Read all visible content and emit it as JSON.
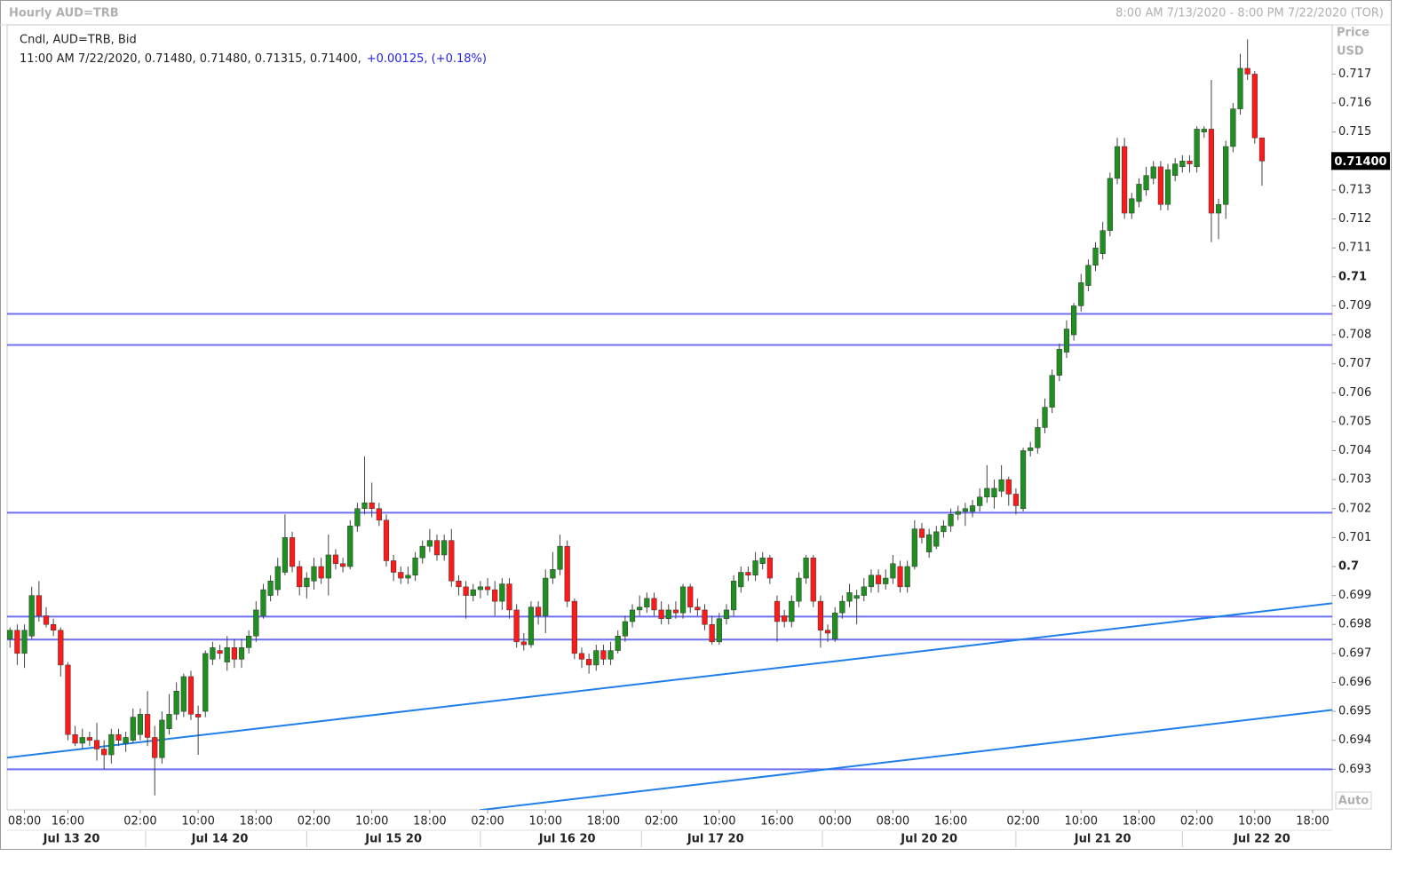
{
  "chart_data": {
    "type": "candlestick",
    "title": "Hourly AUD=TRB",
    "range_label": "8:00 AM 7/13/2020 - 8:00 PM 7/22/2020 (TOR)",
    "legend_line1": "Cndl, AUD=TRB, Bid",
    "legend_line2": "11:00 AM 7/22/2020, 0.71480, 0.71480, 0.71315, 0.71400,",
    "legend_change": "+0.00125, (+0.18%)",
    "axis_title": "Price",
    "axis_unit": "USD",
    "auto_label": "Auto",
    "last_price": {
      "value": 0.714,
      "label": "0.71400"
    },
    "up_color": "#1f8f1f",
    "down_color": "#ff1a1a",
    "xlim": [
      -0.4,
      182.7
    ],
    "ylim": [
      0.6916,
      0.7187
    ],
    "yticks": [
      0.693,
      0.694,
      0.695,
      0.696,
      0.697,
      0.698,
      0.699,
      0.7,
      0.701,
      0.702,
      0.703,
      0.704,
      0.705,
      0.706,
      0.707,
      0.708,
      0.709,
      0.71,
      0.711,
      0.712,
      0.713,
      0.714,
      0.715,
      0.716,
      0.717
    ],
    "xticks": [
      {
        "value": 2,
        "label": "08:00"
      },
      {
        "value": 8,
        "label": "16:00"
      },
      {
        "value": 18,
        "label": "02:00"
      },
      {
        "value": 26,
        "label": "10:00"
      },
      {
        "value": 34,
        "label": "18:00"
      },
      {
        "value": 42,
        "label": "02:00"
      },
      {
        "value": 50,
        "label": "10:00"
      },
      {
        "value": 58,
        "label": "18:00"
      },
      {
        "value": 66,
        "label": "02:00"
      },
      {
        "value": 74,
        "label": "10:00"
      },
      {
        "value": 82,
        "label": "18:00"
      },
      {
        "value": 90,
        "label": "02:00"
      },
      {
        "value": 98,
        "label": "10:00"
      },
      {
        "value": 106,
        "label": "16:00"
      },
      {
        "value": 114,
        "label": "00:00"
      },
      {
        "value": 122,
        "label": "08:00"
      },
      {
        "value": 130,
        "label": "16:00"
      },
      {
        "value": 140,
        "label": "02:00"
      },
      {
        "value": 148,
        "label": "10:00"
      },
      {
        "value": 156,
        "label": "18:00"
      },
      {
        "value": 164,
        "label": "02:00"
      },
      {
        "value": 172,
        "label": "10:00"
      },
      {
        "value": 180,
        "label": "18:00"
      }
    ],
    "date_ticks": [
      {
        "value": 8.5,
        "label": "Jul 13 20"
      },
      {
        "value": 29,
        "label": "Jul 14 20"
      },
      {
        "value": 53,
        "label": "Jul 15 20"
      },
      {
        "value": 77,
        "label": "Jul 16 20"
      },
      {
        "value": 97.5,
        "label": "Jul 17 20"
      },
      {
        "value": 127,
        "label": "Jul 20 20"
      },
      {
        "value": 151,
        "label": "Jul 21 20"
      },
      {
        "value": 173,
        "label": "Jul 22 20"
      }
    ],
    "hline_color": "#6f6ff2",
    "hlines": [
      0.70872,
      0.70765,
      0.70186,
      0.69827,
      0.69748,
      0.693
    ],
    "trend_color": "#1f7fe8",
    "trendlines": [
      [
        [
          -0.4,
          0.6934
        ],
        [
          182.7,
          0.69873
        ]
      ],
      [
        [
          64.9,
          0.69159
        ],
        [
          182.7,
          0.69505
        ]
      ]
    ],
    "ohlc": [
      [
        0.6975,
        0.6979,
        0.6972,
        0.6978
      ],
      [
        0.6978,
        0.698,
        0.6966,
        0.697
      ],
      [
        0.697,
        0.698,
        0.6965,
        0.6978
      ],
      [
        0.6976,
        0.6993,
        0.6975,
        0.699
      ],
      [
        0.699,
        0.6995,
        0.6981,
        0.6983
      ],
      [
        0.6983,
        0.6986,
        0.6979,
        0.698
      ],
      [
        0.698,
        0.6982,
        0.6976,
        0.6978
      ],
      [
        0.6978,
        0.6979,
        0.6962,
        0.6966
      ],
      [
        0.6966,
        0.6967,
        0.694,
        0.6942
      ],
      [
        0.6942,
        0.6945,
        0.6938,
        0.6939
      ],
      [
        0.6939,
        0.6944,
        0.6937,
        0.6941
      ],
      [
        0.6941,
        0.6943,
        0.6938,
        0.694
      ],
      [
        0.694,
        0.6946,
        0.6933,
        0.6937
      ],
      [
        0.6937,
        0.694,
        0.693,
        0.6935
      ],
      [
        0.6935,
        0.6944,
        0.6932,
        0.6942
      ],
      [
        0.6942,
        0.6944,
        0.6938,
        0.694
      ],
      [
        0.6939,
        0.6943,
        0.6936,
        0.6941
      ],
      [
        0.694,
        0.6951,
        0.6939,
        0.6948
      ],
      [
        0.6942,
        0.6951,
        0.694,
        0.6949
      ],
      [
        0.6949,
        0.6957,
        0.6938,
        0.6941
      ],
      [
        0.6941,
        0.6945,
        0.6921,
        0.6934
      ],
      [
        0.6934,
        0.695,
        0.6932,
        0.6947
      ],
      [
        0.6944,
        0.6956,
        0.6942,
        0.6949
      ],
      [
        0.6949,
        0.696,
        0.6947,
        0.6957
      ],
      [
        0.695,
        0.6963,
        0.6948,
        0.6962
      ],
      [
        0.6962,
        0.6964,
        0.6947,
        0.6949
      ],
      [
        0.6949,
        0.6952,
        0.6935,
        0.6948
      ],
      [
        0.695,
        0.6971,
        0.6948,
        0.697
      ],
      [
        0.6968,
        0.6974,
        0.6966,
        0.6972
      ],
      [
        0.6971,
        0.6973,
        0.6968,
        0.697
      ],
      [
        0.6967,
        0.6976,
        0.6964,
        0.6972
      ],
      [
        0.6972,
        0.6975,
        0.6965,
        0.6968
      ],
      [
        0.6968,
        0.6975,
        0.6965,
        0.6972
      ],
      [
        0.6972,
        0.6978,
        0.697,
        0.6976
      ],
      [
        0.6976,
        0.6988,
        0.6974,
        0.6985
      ],
      [
        0.6983,
        0.6994,
        0.6982,
        0.6992
      ],
      [
        0.699,
        0.6997,
        0.6988,
        0.6995
      ],
      [
        0.6992,
        0.7003,
        0.699,
        0.7
      ],
      [
        0.6998,
        0.7018,
        0.6997,
        0.701
      ],
      [
        0.701,
        0.7012,
        0.6998,
        0.7
      ],
      [
        0.7,
        0.7002,
        0.699,
        0.6993
      ],
      [
        0.6993,
        0.6998,
        0.6989,
        0.6996
      ],
      [
        0.6995,
        0.7003,
        0.6992,
        0.7
      ],
      [
        0.7,
        0.7003,
        0.6994,
        0.6996
      ],
      [
        0.6996,
        0.7011,
        0.699,
        0.7004
      ],
      [
        0.7004,
        0.7006,
        0.6999,
        0.7001
      ],
      [
        0.7001,
        0.7003,
        0.6998,
        0.7
      ],
      [
        0.7,
        0.7016,
        0.6999,
        0.7014
      ],
      [
        0.7014,
        0.7022,
        0.7012,
        0.702
      ],
      [
        0.702,
        0.7038,
        0.7018,
        0.7022
      ],
      [
        0.7022,
        0.7029,
        0.7017,
        0.702
      ],
      [
        0.702,
        0.7022,
        0.7014,
        0.7016
      ],
      [
        0.7016,
        0.7018,
        0.7,
        0.7002
      ],
      [
        0.7002,
        0.7004,
        0.6995,
        0.6998
      ],
      [
        0.6998,
        0.7,
        0.6994,
        0.6996
      ],
      [
        0.6996,
        0.7,
        0.6994,
        0.6997
      ],
      [
        0.6997,
        0.7005,
        0.6995,
        0.7003
      ],
      [
        0.7003,
        0.7009,
        0.7001,
        0.7007
      ],
      [
        0.7007,
        0.7013,
        0.7005,
        0.7009
      ],
      [
        0.7009,
        0.7011,
        0.7002,
        0.7004
      ],
      [
        0.7004,
        0.7011,
        0.7002,
        0.7009
      ],
      [
        0.7009,
        0.7013,
        0.6993,
        0.6995
      ],
      [
        0.6995,
        0.6997,
        0.699,
        0.6993
      ],
      [
        0.6993,
        0.6995,
        0.6982,
        0.699
      ],
      [
        0.699,
        0.6994,
        0.6988,
        0.6992
      ],
      [
        0.6992,
        0.6995,
        0.6989,
        0.6993
      ],
      [
        0.6993,
        0.6996,
        0.699,
        0.6992
      ],
      [
        0.6992,
        0.6995,
        0.6983,
        0.6988
      ],
      [
        0.6988,
        0.6996,
        0.6985,
        0.6994
      ],
      [
        0.6994,
        0.6996,
        0.6982,
        0.6985
      ],
      [
        0.6985,
        0.6987,
        0.6972,
        0.6974
      ],
      [
        0.6974,
        0.6977,
        0.6971,
        0.6973
      ],
      [
        0.6973,
        0.6988,
        0.6972,
        0.6986
      ],
      [
        0.6986,
        0.6988,
        0.698,
        0.6983
      ],
      [
        0.6983,
        0.6999,
        0.6977,
        0.6996
      ],
      [
        0.6996,
        0.7005,
        0.6994,
        0.6999
      ],
      [
        0.6999,
        0.7011,
        0.6997,
        0.7007
      ],
      [
        0.7007,
        0.7009,
        0.6986,
        0.6988
      ],
      [
        0.6988,
        0.6989,
        0.6968,
        0.697
      ],
      [
        0.697,
        0.6972,
        0.6965,
        0.6968
      ],
      [
        0.6968,
        0.697,
        0.6963,
        0.6966
      ],
      [
        0.6966,
        0.6973,
        0.6964,
        0.6971
      ],
      [
        0.6971,
        0.6973,
        0.6966,
        0.6968
      ],
      [
        0.6968,
        0.6974,
        0.6966,
        0.6971
      ],
      [
        0.6971,
        0.6978,
        0.697,
        0.6976
      ],
      [
        0.6976,
        0.6983,
        0.6974,
        0.6981
      ],
      [
        0.6981,
        0.6987,
        0.6979,
        0.6985
      ],
      [
        0.6985,
        0.699,
        0.6983,
        0.6986
      ],
      [
        0.6986,
        0.6991,
        0.6984,
        0.6989
      ],
      [
        0.6989,
        0.6991,
        0.6983,
        0.6985
      ],
      [
        0.6985,
        0.6988,
        0.698,
        0.6982
      ],
      [
        0.6982,
        0.6987,
        0.698,
        0.6985
      ],
      [
        0.6985,
        0.6988,
        0.6982,
        0.6984
      ],
      [
        0.6984,
        0.6994,
        0.6982,
        0.6993
      ],
      [
        0.6993,
        0.6994,
        0.6984,
        0.6986
      ],
      [
        0.6986,
        0.6989,
        0.6983,
        0.6985
      ],
      [
        0.6985,
        0.6987,
        0.6978,
        0.698
      ],
      [
        0.698,
        0.6983,
        0.6973,
        0.6974
      ],
      [
        0.6974,
        0.6984,
        0.6973,
        0.6982
      ],
      [
        0.6982,
        0.6987,
        0.698,
        0.6985
      ],
      [
        0.6985,
        0.6997,
        0.6983,
        0.6995
      ],
      [
        0.6993,
        0.7,
        0.6991,
        0.6998
      ],
      [
        0.6998,
        0.7,
        0.6995,
        0.6997
      ],
      [
        0.6997,
        0.7005,
        0.6995,
        0.7002
      ],
      [
        0.7001,
        0.7005,
        0.6999,
        0.7003
      ],
      [
        0.7003,
        0.7004,
        0.6994,
        0.6996
      ],
      [
        0.6988,
        0.699,
        0.6974,
        0.6981
      ],
      [
        0.6983,
        0.6985,
        0.6979,
        0.6981
      ],
      [
        0.6981,
        0.699,
        0.6979,
        0.6988
      ],
      [
        0.6988,
        0.6998,
        0.6986,
        0.6996
      ],
      [
        0.6996,
        0.7004,
        0.6994,
        0.7003
      ],
      [
        0.7003,
        0.7004,
        0.6986,
        0.6988
      ],
      [
        0.6988,
        0.699,
        0.6972,
        0.6978
      ],
      [
        0.6978,
        0.698,
        0.6974,
        0.6977
      ],
      [
        0.6975,
        0.6986,
        0.6974,
        0.6984
      ],
      [
        0.6984,
        0.699,
        0.6982,
        0.6988
      ],
      [
        0.6988,
        0.6994,
        0.6986,
        0.6991
      ],
      [
        0.6989,
        0.6992,
        0.698,
        0.699
      ],
      [
        0.699,
        0.6996,
        0.6988,
        0.6993
      ],
      [
        0.6993,
        0.6999,
        0.6991,
        0.6997
      ],
      [
        0.6997,
        0.6999,
        0.6991,
        0.6994
      ],
      [
        0.6994,
        0.6999,
        0.6992,
        0.6996
      ],
      [
        0.6996,
        0.7004,
        0.6994,
        0.7001
      ],
      [
        0.7,
        0.7002,
        0.6991,
        0.6993
      ],
      [
        0.6993,
        0.7002,
        0.6991,
        0.7
      ],
      [
        0.7,
        0.7016,
        0.6999,
        0.7013
      ],
      [
        0.7013,
        0.7015,
        0.7008,
        0.701
      ],
      [
        0.7005,
        0.7013,
        0.7003,
        0.7011
      ],
      [
        0.7007,
        0.7014,
        0.7006,
        0.7012
      ],
      [
        0.7012,
        0.7016,
        0.701,
        0.7014
      ],
      [
        0.7014,
        0.702,
        0.7012,
        0.7018
      ],
      [
        0.7018,
        0.7021,
        0.7016,
        0.7019
      ],
      [
        0.7019,
        0.7022,
        0.7014,
        0.702
      ],
      [
        0.7019,
        0.7023,
        0.7017,
        0.7021
      ],
      [
        0.7021,
        0.7027,
        0.7019,
        0.7024
      ],
      [
        0.7024,
        0.7035,
        0.7022,
        0.7027
      ],
      [
        0.7024,
        0.703,
        0.702,
        0.7027
      ],
      [
        0.7026,
        0.7035,
        0.7024,
        0.703
      ],
      [
        0.703,
        0.7031,
        0.7021,
        0.7025
      ],
      [
        0.7025,
        0.7027,
        0.7018,
        0.7021
      ],
      [
        0.702,
        0.7041,
        0.7019,
        0.704
      ],
      [
        0.704,
        0.7043,
        0.7038,
        0.7041
      ],
      [
        0.7041,
        0.7051,
        0.7039,
        0.7048
      ],
      [
        0.7048,
        0.7058,
        0.7046,
        0.7055
      ],
      [
        0.7055,
        0.7068,
        0.7053,
        0.7066
      ],
      [
        0.7066,
        0.7077,
        0.7064,
        0.7075
      ],
      [
        0.7074,
        0.7085,
        0.7072,
        0.7082
      ],
      [
        0.708,
        0.7091,
        0.7078,
        0.709
      ],
      [
        0.709,
        0.7101,
        0.7088,
        0.7098
      ],
      [
        0.7097,
        0.7106,
        0.7095,
        0.7104
      ],
      [
        0.7104,
        0.7112,
        0.7102,
        0.711
      ],
      [
        0.7108,
        0.7119,
        0.7106,
        0.7116
      ],
      [
        0.7116,
        0.7136,
        0.7114,
        0.7134
      ],
      [
        0.7134,
        0.7148,
        0.7132,
        0.7145
      ],
      [
        0.7145,
        0.7148,
        0.712,
        0.7122
      ],
      [
        0.7122,
        0.7129,
        0.712,
        0.7127
      ],
      [
        0.7126,
        0.7134,
        0.7124,
        0.7132
      ],
      [
        0.713,
        0.7138,
        0.7128,
        0.7135
      ],
      [
        0.7134,
        0.714,
        0.7132,
        0.7138
      ],
      [
        0.7138,
        0.714,
        0.7123,
        0.7125
      ],
      [
        0.7125,
        0.7139,
        0.7123,
        0.7137
      ],
      [
        0.7135,
        0.7141,
        0.7133,
        0.7139
      ],
      [
        0.7138,
        0.7142,
        0.7136,
        0.714
      ],
      [
        0.714,
        0.7142,
        0.7136,
        0.7139
      ],
      [
        0.7138,
        0.7152,
        0.7136,
        0.7151
      ],
      [
        0.715,
        0.7152,
        0.7148,
        0.7151
      ],
      [
        0.7151,
        0.7168,
        0.7112,
        0.7122
      ],
      [
        0.7122,
        0.7127,
        0.7113,
        0.7125
      ],
      [
        0.7125,
        0.7147,
        0.712,
        0.7145
      ],
      [
        0.7145,
        0.716,
        0.7143,
        0.7158
      ],
      [
        0.7158,
        0.7177,
        0.7156,
        0.7172
      ],
      [
        0.7172,
        0.7182,
        0.7168,
        0.717
      ],
      [
        0.717,
        0.7171,
        0.7146,
        0.7148
      ],
      [
        0.7148,
        0.7148,
        0.71315,
        0.714
      ]
    ]
  }
}
